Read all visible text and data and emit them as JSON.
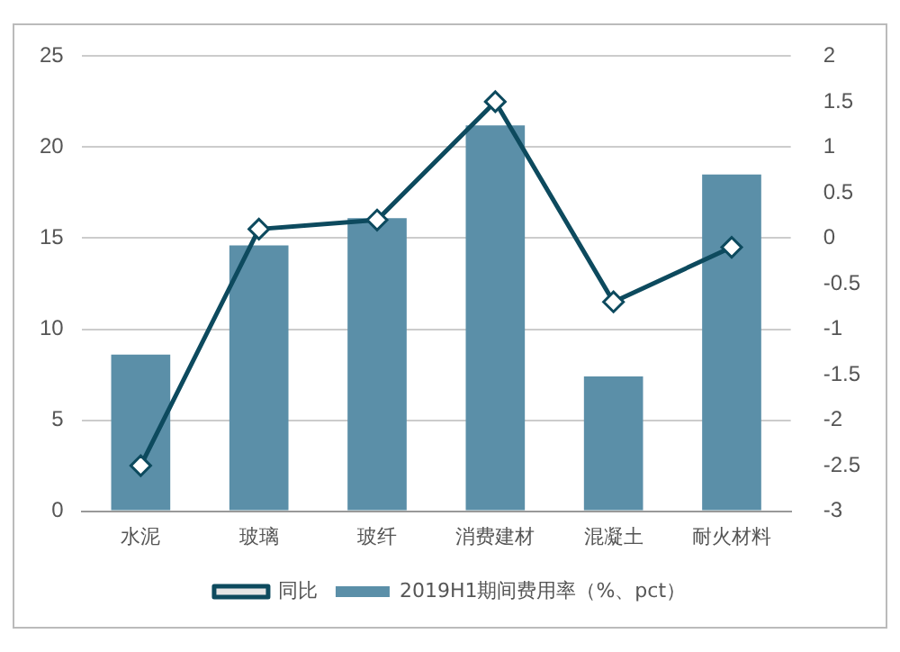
{
  "chart_data": {
    "type": "bar",
    "categories": [
      "水泥",
      "玻璃",
      "玻纤",
      "消费建材",
      "混凝土",
      "耐火材料"
    ],
    "series": [
      {
        "name": "2019H1期间费用率（%、pct）",
        "color": "#5b8fa8",
        "values": [
          8.6,
          14.6,
          16.1,
          21.2,
          7.4,
          18.5
        ]
      },
      {
        "name": "同比",
        "type": "line",
        "axis": "y2",
        "color": "#0d4a5e",
        "marker": "diamond",
        "values": [
          -2.5,
          0.1,
          0.2,
          1.5,
          -0.7,
          -0.1
        ]
      }
    ],
    "ylim": [
      0,
      25
    ],
    "yticks": [
      0,
      5,
      10,
      15,
      20,
      25
    ],
    "y2lim": [
      -3,
      2
    ],
    "y2ticks": [
      -3,
      -2.5,
      -2,
      -1.5,
      -1,
      -0.5,
      0,
      0.5,
      1,
      1.5,
      2
    ],
    "grid": "y",
    "legend": "bottom"
  }
}
